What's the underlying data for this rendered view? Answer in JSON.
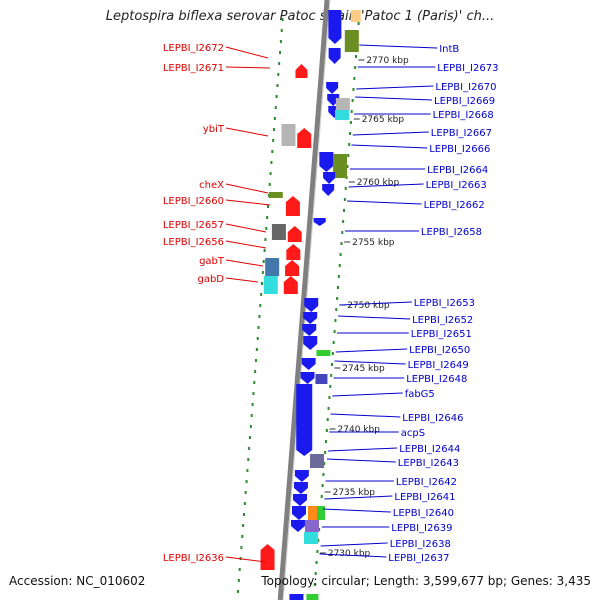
{
  "title": "Leptospira biflexa serovar Patoc strain 'Patoc 1 (Paris)' ch...",
  "accession": "Accession: NC_010602",
  "summary": "Topology: circular; Length: 3,599,677 bp; Genes: 3,435",
  "colors": {
    "label_left": "#e00000",
    "label_right": "#0000cc",
    "backbone": "#808080",
    "tick": "#2e8b2e",
    "red": "#ff1a1a",
    "blue": "#1a1aee",
    "green": "#6b8e23",
    "gray": "#b5b5b5",
    "cyan": "#33dddd"
  },
  "scale_labels": [
    "2770 kbp",
    "2765 kbp",
    "2760 kbp",
    "2755 kbp",
    "2750 kbp",
    "2745 kbp",
    "2740 kbp",
    "2735 kbp",
    "2730 kbp"
  ],
  "left_labels": [
    "LEPBI_I2672",
    "LEPBI_I2671",
    "ybiT",
    "cheX",
    "LEPBI_I2660",
    "LEPBI_I2657",
    "LEPBI_I2656",
    "gabT",
    "gabD",
    "LEPBI_I2636"
  ],
  "right_labels": [
    "IntB",
    "LEPBI_I2673",
    "LEPBI_I2670",
    "LEPBI_I2669",
    "LEPBI_I2668",
    "LEPBI_I2667",
    "LEPBI_I2666",
    "LEPBI_I2664",
    "LEPBI_I2663",
    "LEPBI_I2662",
    "LEPBI_I2658",
    "LEPBI_I2653",
    "LEPBI_I2652",
    "LEPBI_I2651",
    "LEPBI_I2650",
    "LEPBI_I2649",
    "LEPBI_I2648",
    "fabG5",
    "LEPBI_I2646",
    "acpS",
    "LEPBI_I2644",
    "LEPBI_I2643",
    "LEPBI_I2642",
    "LEPBI_I2641",
    "LEPBI_I2640",
    "LEPBI_I2639",
    "LEPBI_I2638",
    "LEPBI_I2637"
  ]
}
